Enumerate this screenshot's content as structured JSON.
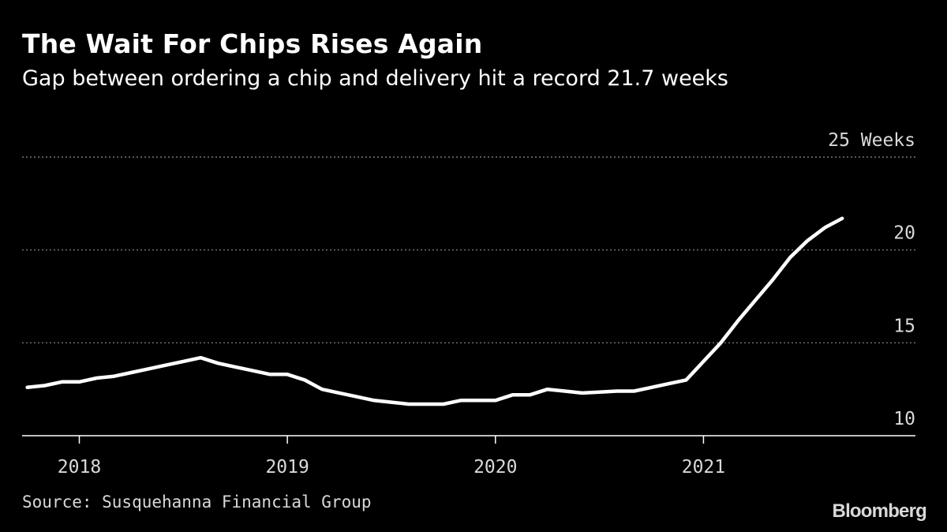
{
  "header": {
    "title": "The Wait For Chips Rises Again",
    "subtitle": "Gap between ordering a chip and delivery hit a record 21.7 weeks"
  },
  "footer": {
    "source": "Source: Susquehanna Financial Group",
    "logo": "Bloomberg"
  },
  "colors": {
    "background": "#000000",
    "line": "#ffffff",
    "grid": "#8c8c8c",
    "text": "#d9d9d9"
  },
  "chart_data": {
    "type": "line",
    "title": "The Wait For Chips Rises Again",
    "subtitle": "Gap between ordering a chip and delivery hit a record 21.7 weeks",
    "xlabel": "",
    "ylabel": "",
    "ylim": [
      10,
      25
    ],
    "xlim": [
      "2017-09",
      "2021-12"
    ],
    "y_ticks": [
      {
        "value": 25,
        "label": "25 Weeks"
      },
      {
        "value": 20,
        "label": "20"
      },
      {
        "value": 15,
        "label": "15"
      },
      {
        "value": 10,
        "label": "10"
      }
    ],
    "x_ticks": [
      {
        "value": "2018-01",
        "label": "2018"
      },
      {
        "value": "2019-01",
        "label": "2019"
      },
      {
        "value": "2020-01",
        "label": "2020"
      },
      {
        "value": "2021-01",
        "label": "2021"
      }
    ],
    "grid": "horizontal dotted",
    "legend": "none",
    "series": [
      {
        "x": [
          "2017-10",
          "2017-11",
          "2017-12",
          "2018-01",
          "2018-02",
          "2018-03",
          "2018-04",
          "2018-05",
          "2018-06",
          "2018-07",
          "2018-08",
          "2018-09",
          "2018-10",
          "2018-11",
          "2018-12",
          "2019-01",
          "2019-02",
          "2019-03",
          "2019-04",
          "2019-05",
          "2019-06",
          "2019-07",
          "2019-08",
          "2019-09",
          "2019-10",
          "2019-11",
          "2019-12",
          "2020-01",
          "2020-02",
          "2020-03",
          "2020-04",
          "2020-05",
          "2020-06",
          "2020-07",
          "2020-08",
          "2020-09",
          "2020-10",
          "2020-11",
          "2020-12",
          "2021-01",
          "2021-02",
          "2021-03",
          "2021-04",
          "2021-05",
          "2021-06",
          "2021-07",
          "2021-08",
          "2021-09"
        ],
        "values": [
          12.6,
          12.7,
          12.9,
          12.9,
          13.1,
          13.2,
          13.4,
          13.6,
          13.8,
          14.0,
          14.2,
          13.9,
          13.7,
          13.5,
          13.3,
          13.3,
          13.0,
          12.5,
          12.3,
          12.1,
          11.9,
          11.8,
          11.7,
          11.7,
          11.7,
          11.9,
          11.9,
          11.9,
          12.2,
          12.2,
          12.5,
          12.4,
          12.3,
          12.35,
          12.4,
          12.4,
          12.6,
          12.8,
          13.0,
          14.0,
          15.0,
          16.2,
          17.3,
          18.4,
          19.6,
          20.5,
          21.2,
          21.7
        ]
      }
    ]
  }
}
